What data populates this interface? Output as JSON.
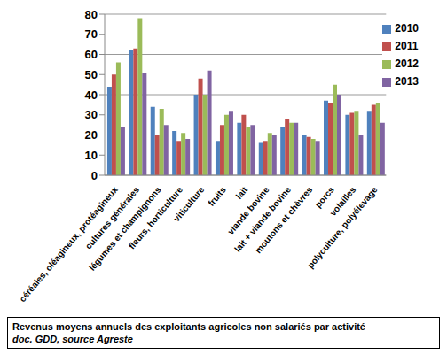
{
  "chart_data": {
    "type": "bar",
    "title": "Revenus moyens annuels des exploitants agricoles non salariés par activité",
    "subtitle": "doc. GDD, source Agreste",
    "categories": [
      "céréales, oléagineux, protéagineux",
      "cultures générales",
      "légumes et champignons",
      "fleurs, horticulture",
      "viticulture",
      "fruits",
      "lait",
      "viande bovine",
      "lait + viande bovine",
      "moutons et chèvres",
      "porcs",
      "volailles",
      "polyculture, polyélevage"
    ],
    "series": [
      {
        "name": "2010",
        "color": "#4f81bd",
        "values": [
          44,
          62,
          34,
          22,
          40,
          17,
          26,
          16,
          24,
          20,
          37,
          30,
          32
        ]
      },
      {
        "name": "2011",
        "color": "#c0504d",
        "values": [
          50,
          63,
          20,
          17,
          48,
          25,
          30,
          17,
          28,
          19,
          36,
          31,
          35
        ]
      },
      {
        "name": "2012",
        "color": "#9bbb59",
        "values": [
          56,
          78,
          33,
          21,
          40,
          30,
          24,
          21,
          26,
          18,
          45,
          32,
          36
        ]
      },
      {
        "name": "2013",
        "color": "#8064a2",
        "values": [
          24,
          51,
          25,
          18,
          52,
          32,
          25,
          20,
          26,
          17,
          40,
          20,
          26
        ]
      }
    ],
    "ylim": [
      0,
      80
    ],
    "yticks": [
      0,
      10,
      20,
      30,
      40,
      50,
      60,
      70,
      80
    ],
    "grid": true,
    "legend": "upper right"
  }
}
